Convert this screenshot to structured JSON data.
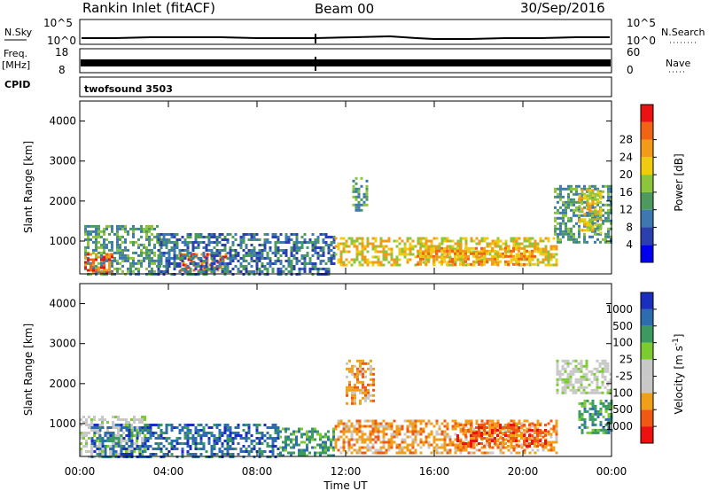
{
  "header": {
    "station": "Rankin Inlet (fitACF)",
    "beam": "Beam 00",
    "date": "30/Sep/2016"
  },
  "top_panels": {
    "nsky_label": "N.Sky",
    "nsky_ticks": [
      "10^5",
      "10^0"
    ],
    "nsearch_label": "N.Search",
    "freq_label_1": "Freq.",
    "freq_label_2": "[MHz]",
    "freq_ticks": [
      "18",
      "8"
    ],
    "nave_ticks": [
      "60",
      "0"
    ],
    "nave_label": "Nave",
    "cpid_label": "CPID",
    "cpid_value": "twofsound 3503"
  },
  "colors": {
    "power_scale": [
      "#0000ee",
      "#2c3fae",
      "#3d78b0",
      "#4d9a60",
      "#8cc43c",
      "#f0cc10",
      "#f39a18",
      "#f06414",
      "#ea1212"
    ],
    "velocity_scale": [
      "#ee1111",
      "#f05814",
      "#f0a018",
      "#c8c8c8",
      "#c8c8c8",
      "#7ccc30",
      "#3a9a60",
      "#2e6cb0",
      "#1a2ec0"
    ]
  },
  "chart_data": [
    {
      "type": "heatmap",
      "title": "Power",
      "xlabel": "Time UT",
      "ylabel": "Slant Range [km]",
      "x_ticks": [
        "00:00",
        "04:00",
        "08:00",
        "12:00",
        "16:00",
        "20:00",
        "00:00"
      ],
      "y_ticks": [
        "1000",
        "2000",
        "3000",
        "4000"
      ],
      "xlim_hours": [
        0,
        24
      ],
      "ylim": [
        180,
        4500
      ],
      "colorbar": {
        "label": "Power [dB]",
        "ticks": [
          "4",
          "8",
          "12",
          "16",
          "20",
          "24",
          "28"
        ],
        "range": [
          0,
          32
        ]
      },
      "bands": [
        {
          "t": [
            0.2,
            3.6
          ],
          "range": [
            180,
            1400
          ],
          "value": 14
        },
        {
          "t": [
            0.2,
            1.5
          ],
          "range": [
            200,
            700
          ],
          "value": 28
        },
        {
          "t": [
            4.5,
            6.6
          ],
          "range": [
            300,
            700
          ],
          "value": 26
        },
        {
          "t": [
            3.5,
            11.5
          ],
          "range": [
            200,
            1200
          ],
          "value": 10
        },
        {
          "t": [
            11.5,
            21.5
          ],
          "range": [
            400,
            1100
          ],
          "value": 20
        },
        {
          "t": [
            15.2,
            20.6
          ],
          "range": [
            420,
            850
          ],
          "value": 24
        },
        {
          "t": [
            12.3,
            13.0
          ],
          "range": [
            1800,
            2600
          ],
          "value": 14
        },
        {
          "t": [
            21.4,
            24.0
          ],
          "range": [
            1000,
            2400
          ],
          "value": 12
        },
        {
          "t": [
            22.5,
            23.5
          ],
          "range": [
            1200,
            2300
          ],
          "value": 18
        }
      ]
    },
    {
      "type": "heatmap",
      "title": "Velocity",
      "xlabel": "Time UT",
      "ylabel": "Slant Range [km]",
      "x_ticks": [
        "00:00",
        "04:00",
        "08:00",
        "12:00",
        "16:00",
        "20:00",
        "00:00"
      ],
      "y_ticks": [
        "1000",
        "2000",
        "3000",
        "4000"
      ],
      "xlim_hours": [
        0,
        24
      ],
      "ylim": [
        180,
        4500
      ],
      "colorbar": {
        "label": "Velocity [m s^-1]",
        "ticks": [
          "1000",
          "500",
          "100",
          "25",
          "-25",
          "-100",
          "-500",
          "-1000"
        ]
      },
      "bands": [
        {
          "t": [
            0.0,
            3.0
          ],
          "range": [
            200,
            1200
          ],
          "value": 0
        },
        {
          "t": [
            0.5,
            9.0
          ],
          "range": [
            200,
            1000
          ],
          "value": 300
        },
        {
          "t": [
            9.0,
            11.5
          ],
          "range": [
            200,
            900
          ],
          "value": 100
        },
        {
          "t": [
            11.5,
            21.5
          ],
          "range": [
            300,
            1100
          ],
          "value": -300
        },
        {
          "t": [
            17.0,
            21.0
          ],
          "range": [
            450,
            1000
          ],
          "value": -700
        },
        {
          "t": [
            12.0,
            13.3
          ],
          "range": [
            1500,
            2600
          ],
          "value": -300
        },
        {
          "t": [
            21.5,
            24.0
          ],
          "range": [
            1800,
            2600
          ],
          "value": 0
        },
        {
          "t": [
            22.5,
            24.0
          ],
          "range": [
            800,
            1600
          ],
          "value": 100
        }
      ]
    }
  ]
}
